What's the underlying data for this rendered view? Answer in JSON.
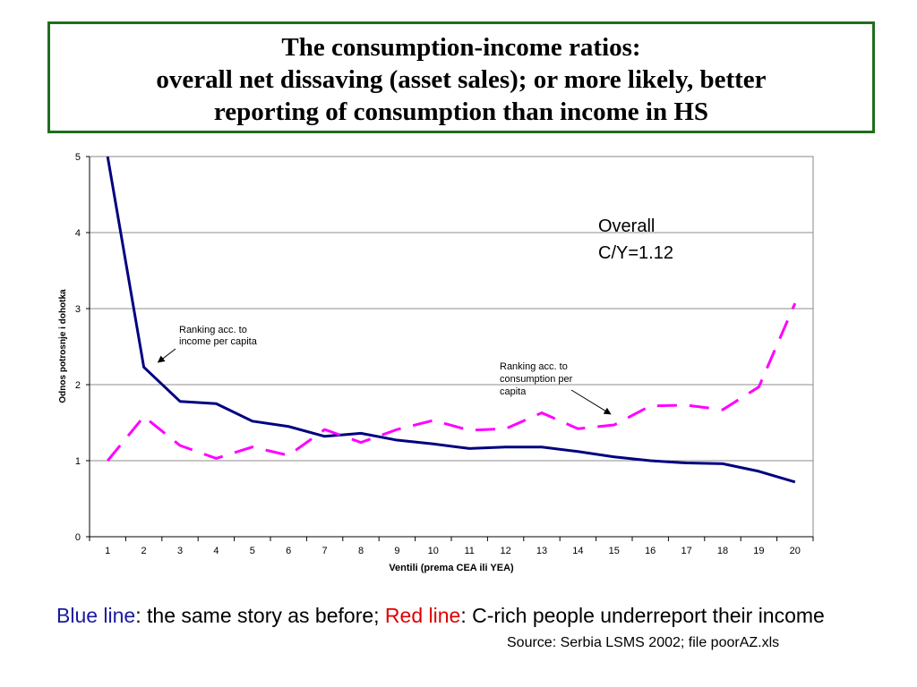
{
  "title": {
    "line1": "The consumption-income ratios:",
    "line2": "overall net dissaving (asset sales); or more likely, better",
    "line3": "reporting of consumption than income in HS"
  },
  "chart_data": {
    "type": "line",
    "title": "",
    "xlabel": "Ventili (prema CEA ili YEA)",
    "ylabel": "Odnos potrosnje i dohotka",
    "categories": [
      "1",
      "2",
      "3",
      "4",
      "5",
      "6",
      "7",
      "8",
      "9",
      "10",
      "11",
      "12",
      "13",
      "14",
      "15",
      "16",
      "17",
      "18",
      "19",
      "20"
    ],
    "ylim": [
      0,
      5
    ],
    "yticks": [
      "0",
      "1",
      "2",
      "3",
      "4",
      "5"
    ],
    "grid": "horizontal",
    "series": [
      {
        "color": "#000080",
        "style": "solid",
        "values": [
          5.0,
          2.23,
          1.78,
          1.75,
          1.52,
          1.45,
          1.32,
          1.36,
          1.27,
          1.22,
          1.16,
          1.18,
          1.18,
          1.12,
          1.05,
          1.0,
          0.97,
          0.96,
          0.86,
          0.72
        ]
      },
      {
        "color": "#ff00ff",
        "style": "dashed",
        "values": [
          1.0,
          1.58,
          1.2,
          1.03,
          1.18,
          1.07,
          1.41,
          1.24,
          1.41,
          1.53,
          1.4,
          1.42,
          1.63,
          1.42,
          1.47,
          1.72,
          1.73,
          1.67,
          1.97,
          3.07
        ]
      }
    ],
    "annotations": [
      {
        "text_lines": [
          "Ranking acc. to",
          "income per capita"
        ],
        "series_index": 0,
        "x": 2,
        "y": 2.33
      },
      {
        "text_lines": [
          "Ranking acc. to",
          "consumption per",
          "capita"
        ],
        "series_index": 1,
        "x": 14.9,
        "y": 1.52
      },
      {
        "text_lines": [
          "Overall",
          "C/Y=1.12"
        ],
        "series_index": null,
        "x": null,
        "y": null
      }
    ]
  },
  "caption": {
    "blue_label": "Blue line",
    "part1": ": the same story as before; ",
    "red_label": "Red line",
    "part2": ": C-rich people underreport their income"
  },
  "source": "Source: Serbia LSMS 2002; file poorAZ.xls"
}
